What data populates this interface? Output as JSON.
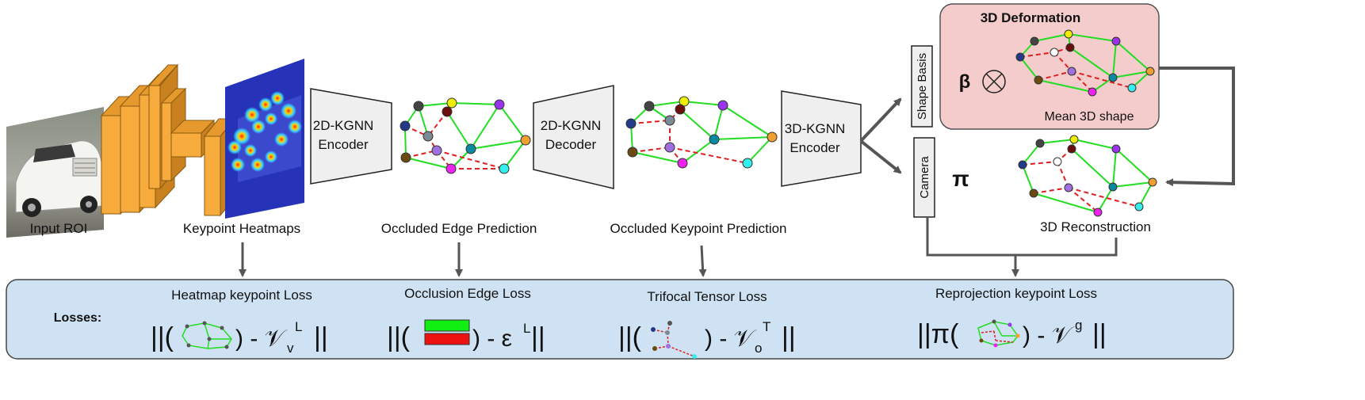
{
  "stages": {
    "input_roi": "Input ROI",
    "keypoint_heatmaps": "Keypoint Heatmaps",
    "occluded_edge_prediction": "Occluded Edge Prediction",
    "occluded_keypoint_prediction": "Occluded Keypoint Prediction",
    "reconstruction_3d": "3D Reconstruction"
  },
  "blocks": {
    "encoder_2d_line1": "2D-KGNN",
    "encoder_2d_line2": "Encoder",
    "decoder_2d_line1": "2D-KGNN",
    "decoder_2d_line2": "Decoder",
    "encoder_3d_line1": "3D-KGNN",
    "encoder_3d_line2": "Encoder",
    "shape_basis": "Shape Basis",
    "camera": "Camera"
  },
  "deformation": {
    "title": "3D Deformation",
    "beta": "β",
    "otimes": "⊗",
    "mean_shape": "Mean 3D shape",
    "pi": "π"
  },
  "losses": {
    "header": "Losses:",
    "heatmap": "Heatmap keypoint Loss",
    "occlusion_edge": "Occlusion Edge Loss",
    "trifocal": "Trifocal Tensor  Loss",
    "reprojection": "Reprojection keypoint Loss",
    "eq_heatmap_open": "||(",
    "eq_heatmap_close": ") - 𝒱",
    "eq_heatmap_sub": "v",
    "eq_heatmap_sup": "L",
    "eq_heatmap_end": "||",
    "eq_edge_open": "||(",
    "eq_edge_close": ") - ε",
    "eq_edge_sup": "L",
    "eq_edge_end": "||",
    "eq_tri_open": "||(",
    "eq_tri_close": ") - 𝒱",
    "eq_tri_sub": "o",
    "eq_tri_sup": "T",
    "eq_tri_end": "||",
    "eq_rep_open": "||π(",
    "eq_rep_close": ") - 𝒱",
    "eq_rep_sup": "g",
    "eq_rep_end": "||"
  },
  "colors": {
    "encoder_fill": "#efefef",
    "cnn_orange": "#f7ab3c",
    "cnn_dark": "#c9801f",
    "deformation_bg": "#f4cccc",
    "loss_bg": "#cfe2f3",
    "edge_green": "#22dd22",
    "edge_red": "#e02020",
    "arrow_gray": "#555555",
    "bar_green": "#11ee11",
    "bar_red": "#ee1111"
  }
}
